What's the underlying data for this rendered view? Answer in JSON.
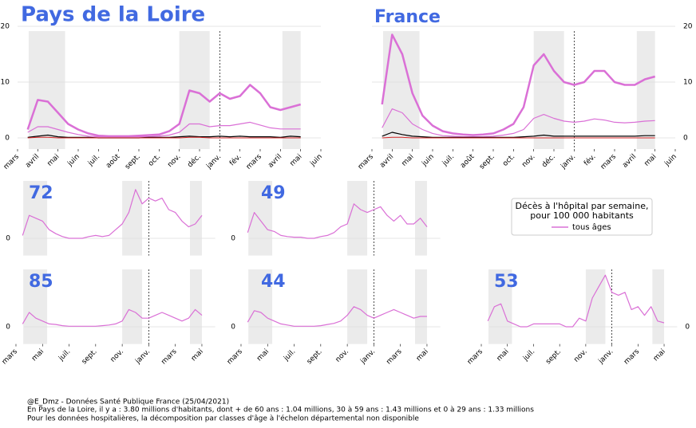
{
  "chart_data": [
    {
      "type": "line",
      "title": "Pays de la Loire",
      "title_size": "big",
      "x": [
        0.5,
        1,
        1.5,
        2,
        2.5,
        3,
        3.5,
        4,
        4.5,
        5,
        5.5,
        6,
        6.5,
        7,
        7.5,
        8,
        8.5,
        9,
        9.5,
        10,
        10.5,
        11,
        11.5,
        12,
        12.5,
        13,
        13.5,
        14
      ],
      "xlim": [
        0,
        15
      ],
      "ylim": [
        -2,
        20
      ],
      "yticks": [
        0,
        10,
        20
      ],
      "yaxis_side": "left",
      "grid": true,
      "xticks": [
        {
          "value": 0,
          "label": "mars"
        },
        {
          "value": 1,
          "label": "avril"
        },
        {
          "value": 2,
          "label": "mai"
        },
        {
          "value": 3,
          "label": "juin"
        },
        {
          "value": 4,
          "label": "juil."
        },
        {
          "value": 5,
          "label": "août"
        },
        {
          "value": 6,
          "label": "sept."
        },
        {
          "value": 7,
          "label": "oct."
        },
        {
          "value": 8,
          "label": "nov."
        },
        {
          "value": 9,
          "label": "déc."
        },
        {
          "value": 10,
          "label": "janv."
        },
        {
          "value": 11,
          "label": "fév."
        },
        {
          "value": 12,
          "label": "mars"
        },
        {
          "value": 13,
          "label": "avril"
        },
        {
          "value": 14,
          "label": "mai"
        },
        {
          "value": 15,
          "label": "juin"
        }
      ],
      "shaded_spans": [
        [
          0.55,
          2.35
        ],
        [
          8.0,
          9.5
        ],
        [
          13.1,
          14.0
        ]
      ],
      "vline": 10,
      "series": [
        {
          "color": "#da70d6",
          "linewidth": 2.5,
          "values": [
            1.5,
            6.8,
            6.5,
            4.5,
            2.5,
            1.5,
            0.8,
            0.4,
            0.3,
            0.3,
            0.3,
            0.4,
            0.5,
            0.6,
            1.2,
            2.5,
            8.5,
            8.0,
            6.5,
            8.0,
            7.0,
            7.5,
            9.5,
            8.0,
            5.5,
            5.0,
            5.5,
            6.0
          ]
        },
        {
          "color": "#da70d6",
          "linewidth": 1.2,
          "values": [
            1.0,
            2.0,
            2.0,
            1.5,
            1.0,
            0.6,
            0.3,
            0.2,
            0.2,
            0.2,
            0.2,
            0.2,
            0.2,
            0.3,
            0.5,
            1.0,
            2.5,
            2.5,
            2.0,
            2.2,
            2.2,
            2.5,
            2.8,
            2.3,
            1.8,
            1.6,
            1.6,
            1.6
          ]
        },
        {
          "color": "#000000",
          "linewidth": 1.2,
          "values": [
            0.1,
            0.3,
            0.5,
            0.2,
            0.1,
            0.1,
            0.1,
            0.0,
            0.0,
            0.0,
            0.0,
            0.0,
            0.1,
            0.1,
            0.1,
            0.2,
            0.3,
            0.2,
            0.2,
            0.3,
            0.2,
            0.3,
            0.2,
            0.2,
            0.2,
            0.1,
            0.3,
            0.2
          ]
        },
        {
          "color": "#d62728",
          "linewidth": 1,
          "values": [
            0,
            0.1,
            0.1,
            0,
            0,
            0,
            0,
            0,
            0,
            0,
            0,
            0,
            0,
            0,
            0,
            0,
            0.1,
            0.1,
            0,
            0,
            0,
            0,
            0,
            0,
            0,
            0,
            0,
            0
          ]
        }
      ]
    },
    {
      "type": "line",
      "title": "France",
      "title_size": "mid",
      "x": [
        0.5,
        1,
        1.5,
        2,
        2.5,
        3,
        3.5,
        4,
        4.5,
        5,
        5.5,
        6,
        6.5,
        7,
        7.5,
        8,
        8.5,
        9,
        9.5,
        10,
        10.5,
        11,
        11.5,
        12,
        12.5,
        13,
        13.5,
        14
      ],
      "xlim": [
        0,
        15
      ],
      "ylim": [
        -2,
        20
      ],
      "yticks": [
        0,
        10,
        20
      ],
      "yaxis_side": "right",
      "grid": true,
      "xticks": [
        {
          "value": 0,
          "label": "mars"
        },
        {
          "value": 1,
          "label": "avril"
        },
        {
          "value": 2,
          "label": "mai"
        },
        {
          "value": 3,
          "label": "juin"
        },
        {
          "value": 4,
          "label": "juil."
        },
        {
          "value": 5,
          "label": "août"
        },
        {
          "value": 6,
          "label": "sept."
        },
        {
          "value": 7,
          "label": "oct."
        },
        {
          "value": 8,
          "label": "nov."
        },
        {
          "value": 9,
          "label": "déc."
        },
        {
          "value": 10,
          "label": "janv."
        },
        {
          "value": 11,
          "label": "fév."
        },
        {
          "value": 12,
          "label": "mars"
        },
        {
          "value": 13,
          "label": "avril"
        },
        {
          "value": 14,
          "label": "mai"
        },
        {
          "value": 15,
          "label": "juin"
        }
      ],
      "shaded_spans": [
        [
          0.55,
          2.35
        ],
        [
          8.0,
          9.5
        ],
        [
          13.1,
          14.0
        ]
      ],
      "vline": 10,
      "series": [
        {
          "color": "#da70d6",
          "linewidth": 2.5,
          "values": [
            6,
            18.5,
            15,
            8,
            4,
            2.2,
            1.2,
            0.8,
            0.6,
            0.5,
            0.6,
            0.8,
            1.5,
            2.5,
            5.5,
            13,
            15,
            12,
            10,
            9.5,
            10,
            12,
            12,
            10,
            9.5,
            9.5,
            10.5,
            11
          ]
        },
        {
          "color": "#da70d6",
          "linewidth": 1.2,
          "values": [
            1.8,
            5.2,
            4.5,
            2.5,
            1.5,
            0.8,
            0.4,
            0.3,
            0.2,
            0.2,
            0.2,
            0.3,
            0.5,
            0.8,
            1.5,
            3.5,
            4.2,
            3.5,
            3.0,
            2.8,
            3.0,
            3.4,
            3.2,
            2.8,
            2.7,
            2.8,
            3.0,
            3.1
          ]
        },
        {
          "color": "#000000",
          "linewidth": 1.2,
          "values": [
            0.3,
            1.0,
            0.6,
            0.3,
            0.2,
            0.1,
            0.1,
            0.1,
            0.1,
            0.1,
            0.1,
            0.1,
            0.1,
            0.1,
            0.2,
            0.3,
            0.5,
            0.3,
            0.3,
            0.3,
            0.3,
            0.3,
            0.3,
            0.3,
            0.3,
            0.3,
            0.4,
            0.4
          ]
        },
        {
          "color": "#d62728",
          "linewidth": 1,
          "values": [
            0,
            0.1,
            0.1,
            0,
            0,
            0,
            0,
            0,
            0,
            0,
            0,
            0,
            0,
            0,
            0,
            0,
            0,
            0,
            0,
            0,
            0,
            0,
            0,
            0,
            0,
            0,
            0,
            0
          ]
        }
      ]
    },
    {
      "type": "line",
      "title": "72",
      "title_size": "mid",
      "x": [
        0.5,
        1,
        1.5,
        2,
        2.5,
        3,
        3.5,
        4,
        4.5,
        5,
        5.5,
        6,
        6.5,
        7,
        7.5,
        8,
        8.5,
        9,
        9.5,
        10,
        10.5,
        11,
        11.5,
        12,
        12.5,
        13,
        13.5,
        14
      ],
      "xlim": [
        -0.6,
        15
      ],
      "ylim": [
        -3,
        10
      ],
      "yticks": [
        0
      ],
      "yaxis_side": "left",
      "grid": true,
      "shaded_spans": [
        [
          0.55,
          2.35
        ],
        [
          8.0,
          9.5
        ],
        [
          13.1,
          14.0
        ]
      ],
      "vline": 10,
      "series": [
        {
          "color": "#da70d6",
          "linewidth": 1.2,
          "values": [
            0.5,
            4,
            3.5,
            3,
            1.5,
            0.8,
            0.3,
            0,
            0,
            0,
            0.3,
            0.5,
            0.3,
            0.5,
            1.5,
            2.5,
            4.5,
            8.5,
            6,
            7,
            6.5,
            7,
            5,
            4.5,
            3,
            2,
            2.5,
            4
          ]
        }
      ]
    },
    {
      "type": "line",
      "title": "49",
      "title_size": "mid",
      "x": [
        0.5,
        1,
        1.5,
        2,
        2.5,
        3,
        3.5,
        4,
        4.5,
        5,
        5.5,
        6,
        6.5,
        7,
        7.5,
        8,
        8.5,
        9,
        9.5,
        10,
        10.5,
        11,
        11.5,
        12,
        12.5,
        13,
        13.5,
        14
      ],
      "xlim": [
        -0.6,
        15
      ],
      "ylim": [
        -3,
        10
      ],
      "yticks": [
        0
      ],
      "yaxis_side": "left",
      "grid": true,
      "shaded_spans": [
        [
          0.55,
          2.35
        ],
        [
          8.0,
          9.5
        ],
        [
          13.1,
          14.0
        ]
      ],
      "vline": 10,
      "series": [
        {
          "color": "#da70d6",
          "linewidth": 1.2,
          "values": [
            1,
            4.5,
            3,
            1.5,
            1.2,
            0.5,
            0.3,
            0.2,
            0.2,
            0,
            0,
            0.3,
            0.5,
            1,
            2,
            2.5,
            6,
            5,
            4.5,
            5,
            5.5,
            4,
            3,
            4,
            2.5,
            2.5,
            3.5,
            2
          ]
        }
      ]
    },
    {
      "type": "line",
      "title": "85",
      "title_size": "mid",
      "x": [
        0.5,
        1,
        1.5,
        2,
        2.5,
        3,
        3.5,
        4,
        4.5,
        5,
        5.5,
        6,
        6.5,
        7,
        7.5,
        8,
        8.5,
        9,
        9.5,
        10,
        10.5,
        11,
        11.5,
        12,
        12.5,
        13,
        13.5,
        14
      ],
      "xlim": [
        -0.6,
        15
      ],
      "ylim": [
        -3,
        10
      ],
      "yticks": [
        0
      ],
      "yaxis_side": "left",
      "grid": true,
      "xticks": [
        {
          "value": 0,
          "label": "mars"
        },
        {
          "value": 2,
          "label": "mai"
        },
        {
          "value": 4,
          "label": "juil."
        },
        {
          "value": 6,
          "label": "sept."
        },
        {
          "value": 8,
          "label": "nov."
        },
        {
          "value": 10,
          "label": "janv."
        },
        {
          "value": 12,
          "label": "mars"
        },
        {
          "value": 14,
          "label": "mai"
        }
      ],
      "shaded_spans": [
        [
          0.55,
          2.35
        ],
        [
          8.0,
          9.5
        ],
        [
          13.1,
          14.0
        ]
      ],
      "vline": 10,
      "series": [
        {
          "color": "#da70d6",
          "linewidth": 1.2,
          "values": [
            0.5,
            2.5,
            1.5,
            1,
            0.5,
            0.4,
            0.2,
            0.1,
            0.1,
            0.1,
            0.1,
            0.1,
            0.2,
            0.3,
            0.5,
            1,
            3,
            2.5,
            1.5,
            1.5,
            2,
            2.5,
            2,
            1.5,
            1,
            1.5,
            3,
            2
          ]
        }
      ]
    },
    {
      "type": "line",
      "title": "44",
      "title_size": "mid",
      "x": [
        0.5,
        1,
        1.5,
        2,
        2.5,
        3,
        3.5,
        4,
        4.5,
        5,
        5.5,
        6,
        6.5,
        7,
        7.5,
        8,
        8.5,
        9,
        9.5,
        10,
        10.5,
        11,
        11.5,
        12,
        12.5,
        13,
        13.5,
        14
      ],
      "xlim": [
        -0.6,
        15
      ],
      "ylim": [
        -3,
        10
      ],
      "yticks": [
        0
      ],
      "yaxis_side": "left",
      "grid": true,
      "xticks": [
        {
          "value": 0,
          "label": "mars"
        },
        {
          "value": 2,
          "label": "mai"
        },
        {
          "value": 4,
          "label": "juil."
        },
        {
          "value": 6,
          "label": "sept."
        },
        {
          "value": 8,
          "label": "nov."
        },
        {
          "value": 10,
          "label": "janv."
        },
        {
          "value": 12,
          "label": "mars"
        },
        {
          "value": 14,
          "label": "mai"
        }
      ],
      "shaded_spans": [
        [
          0.55,
          2.35
        ],
        [
          8.0,
          9.5
        ],
        [
          13.1,
          14.0
        ]
      ],
      "vline": 10,
      "series": [
        {
          "color": "#da70d6",
          "linewidth": 1.2,
          "values": [
            0.8,
            2.8,
            2.5,
            1.5,
            1,
            0.5,
            0.3,
            0.1,
            0.1,
            0.1,
            0.1,
            0.2,
            0.4,
            0.6,
            1,
            2,
            3.5,
            3,
            2,
            1.5,
            2,
            2.5,
            3,
            2.5,
            2,
            1.5,
            1.8,
            1.8
          ]
        }
      ]
    },
    {
      "type": "line",
      "title": "53",
      "title_size": "mid",
      "x": [
        0.5,
        1,
        1.5,
        2,
        2.5,
        3,
        3.5,
        4,
        4.5,
        5,
        5.5,
        6,
        6.5,
        7,
        7.5,
        8,
        8.5,
        9,
        9.5,
        10,
        10.5,
        11,
        11.5,
        12,
        12.5,
        13,
        13.5,
        14
      ],
      "xlim": [
        -0.6,
        15
      ],
      "ylim": [
        -3,
        10
      ],
      "yticks": [
        0
      ],
      "yaxis_side": "right",
      "grid": true,
      "xticks": [
        {
          "value": 0,
          "label": "mars"
        },
        {
          "value": 2,
          "label": "mai"
        },
        {
          "value": 4,
          "label": "juil."
        },
        {
          "value": 6,
          "label": "sept."
        },
        {
          "value": 8,
          "label": "nov."
        },
        {
          "value": 10,
          "label": "janv."
        },
        {
          "value": 12,
          "label": "mars"
        },
        {
          "value": 14,
          "label": "mai"
        }
      ],
      "shaded_spans": [
        [
          0.55,
          2.35
        ],
        [
          8.0,
          9.5
        ],
        [
          13.1,
          14.0
        ]
      ],
      "vline": 10,
      "series": [
        {
          "color": "#da70d6",
          "linewidth": 1.2,
          "values": [
            1,
            3.5,
            4,
            1,
            0.5,
            0,
            0,
            0.5,
            0.5,
            0.5,
            0.5,
            0.5,
            0,
            0,
            1.5,
            1,
            5,
            7,
            9,
            6,
            5.5,
            6,
            3,
            3.5,
            2,
            3.5,
            1,
            0.7
          ]
        }
      ]
    }
  ],
  "legend": {
    "title_lines": [
      "Décès à l'hôpital par semaine,",
      "pour 100 000 habitants"
    ],
    "entries": [
      {
        "name": "tous âges",
        "color": "#da70d6"
      }
    ]
  },
  "notes": [
    "@E_Dmz - Données Santé Publique France (25/04/2021)",
    "En Pays de la Loire, il y a : 3.80 millions d'habitants, dont + de 60 ans : 1.04 millions, 30 à 59 ans : 1.43 millions et 0 à 29 ans : 1.33 millions",
    "Pour les données hospitalières, la décomposition par classes d'âge à l'échelon départemental non disponible"
  ]
}
